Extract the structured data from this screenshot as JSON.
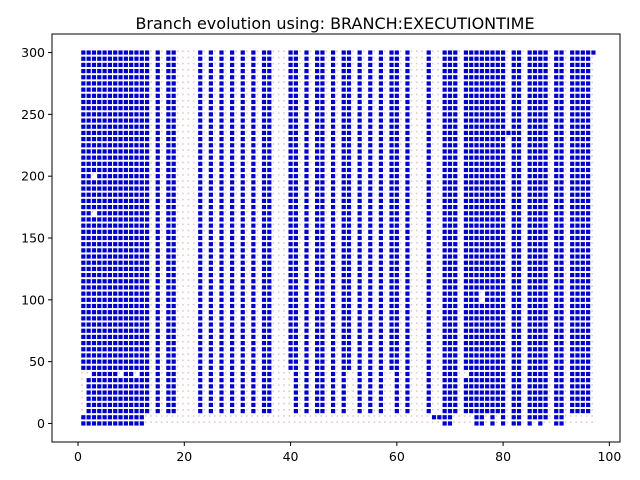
{
  "chart_data": {
    "type": "scatter",
    "title": "Branch evolution using: BRANCH:EXECUTIONTIME",
    "xlabel": "",
    "ylabel": "",
    "xlim": [
      -4.9,
      102
    ],
    "ylim": [
      -15,
      315
    ],
    "x_ticks": [
      0,
      20,
      40,
      60,
      80,
      100
    ],
    "y_ticks": [
      0,
      50,
      100,
      150,
      200,
      250,
      300
    ],
    "grid": false,
    "legend": "none",
    "marker": "square",
    "colors": {
      "filled": "#0000cc",
      "empty": "#e8c8c8"
    },
    "x_range": [
      1,
      97
    ],
    "y_range": [
      0,
      300
    ],
    "y_step": 5,
    "columns": [
      {
        "x": 1,
        "segments": [
          [
            0,
            5
          ],
          [
            45,
            300
          ]
        ]
      },
      {
        "x": 2,
        "segments": [
          [
            0,
            35
          ],
          [
            45,
            300
          ]
        ]
      },
      {
        "x": 3,
        "segments": [
          [
            0,
            40
          ],
          [
            45,
            165
          ],
          [
            175,
            195
          ],
          [
            205,
            300
          ]
        ]
      },
      {
        "x": 4,
        "segments": [
          [
            0,
            300
          ]
        ]
      },
      {
        "x": 5,
        "segments": [
          [
            0,
            40
          ],
          [
            45,
            300
          ]
        ]
      },
      {
        "x": 6,
        "segments": [
          [
            0,
            5
          ],
          [
            10,
            300
          ]
        ]
      },
      {
        "x": 7,
        "segments": [
          [
            0,
            300
          ]
        ]
      },
      {
        "x": 8,
        "segments": [
          [
            0,
            35
          ],
          [
            45,
            300
          ]
        ]
      },
      {
        "x": 9,
        "segments": [
          [
            0,
            300
          ]
        ]
      },
      {
        "x": 10,
        "segments": [
          [
            0,
            40
          ],
          [
            45,
            300
          ]
        ]
      },
      {
        "x": 11,
        "segments": [
          [
            0,
            35
          ],
          [
            45,
            300
          ]
        ]
      },
      {
        "x": 12,
        "segments": [
          [
            0,
            300
          ]
        ]
      },
      {
        "x": 13,
        "segments": [
          [
            10,
            40
          ],
          [
            45,
            300
          ]
        ]
      },
      {
        "x": 15,
        "segments": [
          [
            10,
            300
          ]
        ]
      },
      {
        "x": 17,
        "segments": [
          [
            10,
            300
          ]
        ]
      },
      {
        "x": 18,
        "segments": [
          [
            10,
            300
          ]
        ]
      },
      {
        "x": 23,
        "segments": [
          [
            10,
            300
          ]
        ]
      },
      {
        "x": 25,
        "segments": [
          [
            10,
            300
          ]
        ]
      },
      {
        "x": 27,
        "segments": [
          [
            10,
            300
          ]
        ]
      },
      {
        "x": 29,
        "segments": [
          [
            10,
            300
          ]
        ]
      },
      {
        "x": 31,
        "segments": [
          [
            10,
            300
          ]
        ]
      },
      {
        "x": 33,
        "segments": [
          [
            10,
            300
          ]
        ]
      },
      {
        "x": 35,
        "segments": [
          [
            10,
            300
          ]
        ]
      },
      {
        "x": 36,
        "segments": [
          [
            10,
            300
          ]
        ]
      },
      {
        "x": 40,
        "segments": [
          [
            45,
            300
          ]
        ]
      },
      {
        "x": 41,
        "segments": [
          [
            10,
            300
          ]
        ]
      },
      {
        "x": 43,
        "segments": [
          [
            10,
            300
          ]
        ]
      },
      {
        "x": 45,
        "segments": [
          [
            10,
            300
          ]
        ]
      },
      {
        "x": 46,
        "segments": [
          [
            10,
            300
          ]
        ]
      },
      {
        "x": 48,
        "segments": [
          [
            10,
            300
          ]
        ]
      },
      {
        "x": 50,
        "segments": [
          [
            10,
            300
          ]
        ]
      },
      {
        "x": 51,
        "segments": [
          [
            45,
            300
          ]
        ]
      },
      {
        "x": 53,
        "segments": [
          [
            10,
            300
          ]
        ]
      },
      {
        "x": 55,
        "segments": [
          [
            10,
            300
          ]
        ]
      },
      {
        "x": 57,
        "segments": [
          [
            10,
            300
          ]
        ]
      },
      {
        "x": 59,
        "segments": [
          [
            45,
            300
          ]
        ]
      },
      {
        "x": 60,
        "segments": [
          [
            10,
            300
          ]
        ]
      },
      {
        "x": 62,
        "segments": [
          [
            10,
            300
          ]
        ]
      },
      {
        "x": 66,
        "segments": [
          [
            10,
            300
          ]
        ]
      },
      {
        "x": 67,
        "segments": [
          [
            5,
            5
          ]
        ]
      },
      {
        "x": 68,
        "segments": [
          [
            5,
            5
          ]
        ]
      },
      {
        "x": 69,
        "segments": [
          [
            0,
            300
          ]
        ]
      },
      {
        "x": 70,
        "segments": [
          [
            0,
            300
          ]
        ]
      },
      {
        "x": 71,
        "segments": [
          [
            10,
            300
          ]
        ]
      },
      {
        "x": 73,
        "segments": [
          [
            10,
            35
          ],
          [
            45,
            300
          ]
        ]
      },
      {
        "x": 74,
        "segments": [
          [
            10,
            40
          ],
          [
            45,
            300
          ]
        ]
      },
      {
        "x": 75,
        "segments": [
          [
            0,
            300
          ]
        ]
      },
      {
        "x": 76,
        "segments": [
          [
            0,
            95
          ],
          [
            110,
            300
          ]
        ]
      },
      {
        "x": 77,
        "segments": [
          [
            10,
            300
          ]
        ]
      },
      {
        "x": 78,
        "segments": [
          [
            0,
            300
          ]
        ]
      },
      {
        "x": 79,
        "segments": [
          [
            10,
            300
          ]
        ]
      },
      {
        "x": 80,
        "segments": [
          [
            0,
            40
          ],
          [
            45,
            300
          ]
        ]
      },
      {
        "x": 81,
        "segments": [
          [
            235,
            235
          ]
        ]
      },
      {
        "x": 82,
        "segments": [
          [
            0,
            300
          ]
        ]
      },
      {
        "x": 83,
        "segments": [
          [
            0,
            300
          ]
        ]
      },
      {
        "x": 85,
        "segments": [
          [
            0,
            300
          ]
        ]
      },
      {
        "x": 86,
        "segments": [
          [
            5,
            300
          ]
        ]
      },
      {
        "x": 87,
        "segments": [
          [
            0,
            300
          ]
        ]
      },
      {
        "x": 88,
        "segments": [
          [
            5,
            300
          ]
        ]
      },
      {
        "x": 90,
        "segments": [
          [
            0,
            300
          ]
        ]
      },
      {
        "x": 91,
        "segments": [
          [
            0,
            300
          ]
        ]
      },
      {
        "x": 93,
        "segments": [
          [
            10,
            300
          ]
        ]
      },
      {
        "x": 94,
        "segments": [
          [
            10,
            300
          ]
        ]
      },
      {
        "x": 95,
        "segments": [
          [
            10,
            300
          ]
        ]
      },
      {
        "x": 96,
        "segments": [
          [
            10,
            300
          ]
        ]
      },
      {
        "x": 97,
        "segments": [
          [
            300,
            300
          ]
        ]
      }
    ]
  }
}
